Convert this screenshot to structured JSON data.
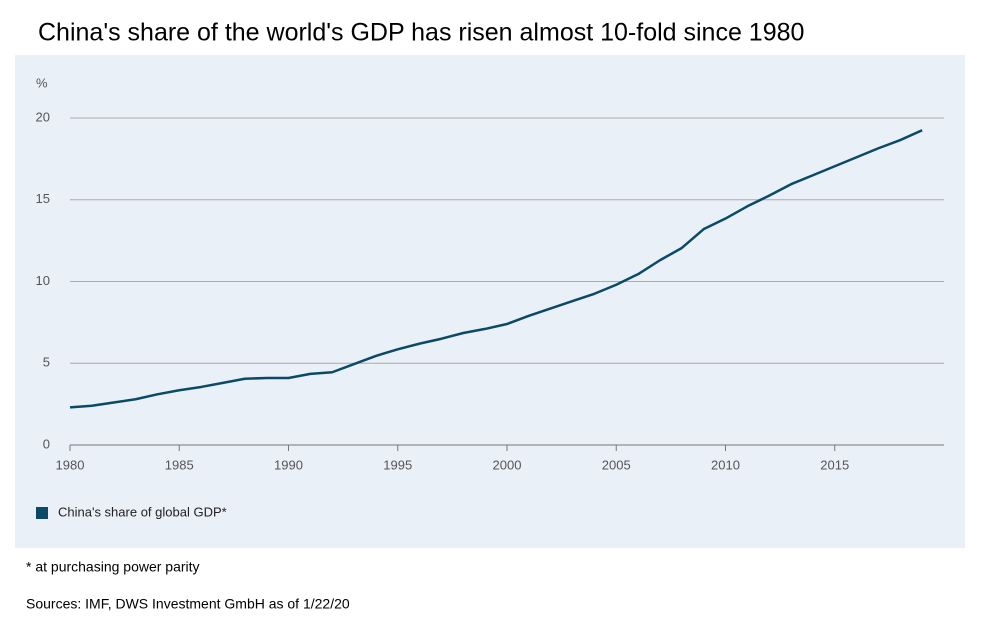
{
  "chart_data": {
    "type": "line",
    "title": "China's share of the world's GDP has risen almost 10-fold since 1980",
    "y_label": "%",
    "footnote": "* at purchasing power parity",
    "source": "Sources: IMF, DWS Investment GmbH as of 1/22/20",
    "x": [
      1980,
      1981,
      1982,
      1983,
      1984,
      1985,
      1986,
      1987,
      1988,
      1989,
      1990,
      1991,
      1992,
      1993,
      1994,
      1995,
      1996,
      1997,
      1998,
      1999,
      2000,
      2001,
      2002,
      2003,
      2004,
      2005,
      2006,
      2007,
      2008,
      2009,
      2010,
      2011,
      2012,
      2013,
      2014,
      2015,
      2016,
      2017,
      2018,
      2019
    ],
    "series": [
      {
        "name": "China's share of global GDP*",
        "color": "#0b4a66",
        "values": [
          2.3,
          2.4,
          2.6,
          2.8,
          3.1,
          3.35,
          3.55,
          3.8,
          4.05,
          4.1,
          4.1,
          4.35,
          4.45,
          4.95,
          5.45,
          5.85,
          6.2,
          6.5,
          6.85,
          7.1,
          7.4,
          7.9,
          8.35,
          8.8,
          9.25,
          9.8,
          10.45,
          11.3,
          12.05,
          13.2,
          13.85,
          14.6,
          15.25,
          15.95,
          16.5,
          17.05,
          17.6,
          18.15,
          18.65,
          19.25
        ]
      }
    ],
    "xlim": [
      1980,
      2020
    ],
    "xticks": [
      1980,
      1985,
      1990,
      1995,
      2000,
      2005,
      2010,
      2015
    ],
    "ylim": [
      0,
      20
    ],
    "yticks": [
      0,
      5,
      10,
      15,
      20
    ],
    "grid": true,
    "legend": "bottom-left"
  }
}
